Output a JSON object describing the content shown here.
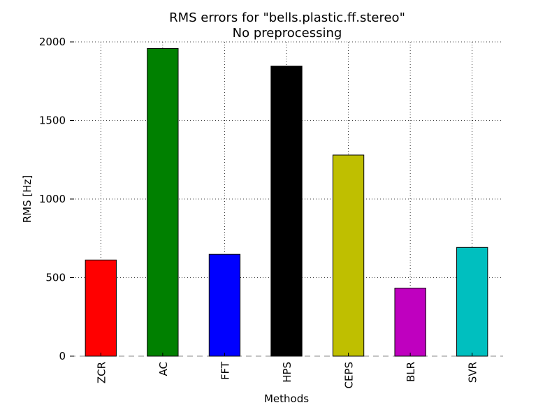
{
  "chart_data": {
    "type": "bar",
    "title": "RMS errors for \"bells.plastic.ff.stereo\"",
    "subtitle": "No preprocessing",
    "xlabel": "Methods",
    "ylabel": "RMS [Hz]",
    "categories": [
      "ZCR",
      "AC",
      "FFT",
      "HPS",
      "CEPS",
      "BLR",
      "SVR"
    ],
    "values": [
      612,
      1958,
      648,
      1846,
      1280,
      433,
      692
    ],
    "colors": [
      "#ff0000",
      "#008000",
      "#0000ff",
      "#000000",
      "#bfbf00",
      "#bf00bf",
      "#00bfbf"
    ],
    "ylim": [
      0,
      2000
    ],
    "yticks": [
      0,
      500,
      1000,
      1500,
      2000
    ],
    "grid": true
  }
}
